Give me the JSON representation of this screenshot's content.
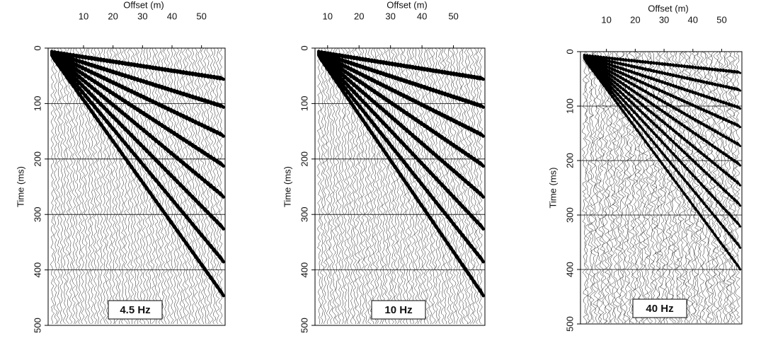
{
  "chart_data": [
    {
      "type": "seismogram",
      "label": "4.5 Hz",
      "x_label": "Offset (m)",
      "y_label": "Time (ms)",
      "xlim": [
        -2,
        58
      ],
      "xticks": [
        10,
        20,
        30,
        40,
        50
      ],
      "ylim": [
        0,
        500
      ],
      "yticks": [
        0,
        100,
        200,
        300,
        400,
        500
      ],
      "grid": true
    },
    {
      "type": "seismogram",
      "label": "10 Hz",
      "x_label": "Offset (m)",
      "y_label": "Time (ms)",
      "xlim": [
        6,
        60
      ],
      "xticks": [
        10,
        20,
        30,
        40,
        50
      ],
      "ylim": [
        0,
        500
      ],
      "yticks": [
        0,
        100,
        200,
        300,
        400,
        500
      ],
      "grid": true
    },
    {
      "type": "seismogram",
      "label": "40 Hz",
      "x_label": "Offset (m)",
      "y_label": "Time (ms)",
      "xlim": [
        1,
        57
      ],
      "xticks": [
        10,
        20,
        30,
        40,
        50
      ],
      "ylim": [
        0,
        500
      ],
      "yticks": [
        0,
        100,
        200,
        300,
        400,
        500
      ],
      "grid": true
    }
  ]
}
